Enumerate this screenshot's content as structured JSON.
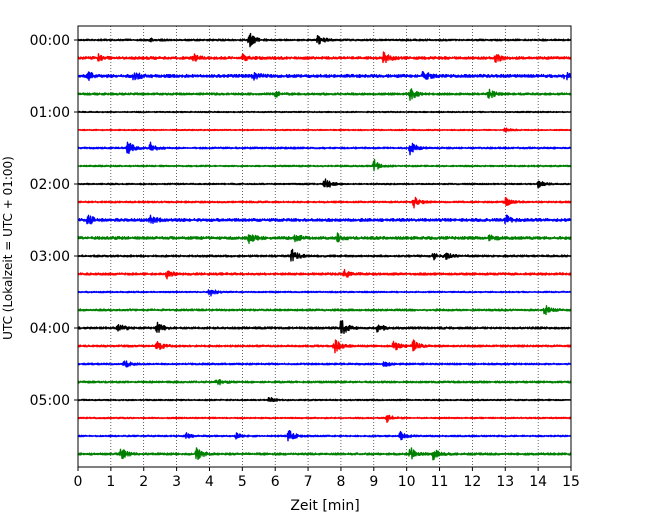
{
  "chart_data": {
    "type": "line",
    "title": "",
    "xlabel": "Zeit  [min]",
    "ylabel": "UTC (Lokalzeit = UTC + 01:00)",
    "xlim": [
      0,
      15
    ],
    "x_ticks": [
      "0",
      "1",
      "2",
      "3",
      "4",
      "5",
      "6",
      "7",
      "8",
      "9",
      "10",
      "11",
      "12",
      "13",
      "14",
      "15"
    ],
    "y_tick_labels": [
      "00:00",
      "01:00",
      "02:00",
      "03:00",
      "04:00",
      "05:00"
    ],
    "grid": "vertical dotted at each minute",
    "legend": "none",
    "trace_colors": [
      "#000000",
      "#ff0000",
      "#0000ff",
      "#008000"
    ],
    "trace_count": 24,
    "trace_minutes_each": 15,
    "traces": [
      {
        "start": "00:00",
        "color": "#000000",
        "events": [
          [
            5.2,
            0.8
          ],
          [
            7.3,
            0.5
          ],
          [
            2.2,
            0.2
          ]
        ],
        "noise": 0.18
      },
      {
        "start": "00:15",
        "color": "#ff0000",
        "events": [
          [
            0.6,
            0.4
          ],
          [
            3.5,
            0.4
          ],
          [
            5.0,
            0.3
          ],
          [
            9.3,
            0.6
          ],
          [
            12.7,
            0.5
          ]
        ],
        "noise": 0.28
      },
      {
        "start": "00:30",
        "color": "#0000ff",
        "events": [
          [
            0.3,
            0.5
          ],
          [
            1.7,
            0.5
          ],
          [
            5.3,
            0.4
          ],
          [
            10.5,
            0.5
          ],
          [
            14.8,
            0.4
          ]
        ],
        "noise": 0.32
      },
      {
        "start": "00:45",
        "color": "#008000",
        "events": [
          [
            10.1,
            0.7
          ],
          [
            12.5,
            0.5
          ],
          [
            6.0,
            0.3
          ]
        ],
        "noise": 0.22
      },
      {
        "start": "01:00",
        "color": "#000000",
        "events": [],
        "noise": 0.12
      },
      {
        "start": "01:15",
        "color": "#ff0000",
        "events": [
          [
            13.0,
            0.3
          ]
        ],
        "noise": 0.12
      },
      {
        "start": "01:30",
        "color": "#0000ff",
        "events": [
          [
            1.5,
            0.7
          ],
          [
            2.2,
            0.6
          ],
          [
            10.1,
            0.7
          ]
        ],
        "noise": 0.18
      },
      {
        "start": "01:45",
        "color": "#008000",
        "events": [
          [
            9.0,
            0.7
          ]
        ],
        "noise": 0.15
      },
      {
        "start": "02:00",
        "color": "#000000",
        "events": [
          [
            7.5,
            0.8
          ],
          [
            14.0,
            0.4
          ]
        ],
        "noise": 0.14
      },
      {
        "start": "02:15",
        "color": "#ff0000",
        "events": [
          [
            10.2,
            0.6
          ],
          [
            13.0,
            0.4
          ]
        ],
        "noise": 0.18
      },
      {
        "start": "02:30",
        "color": "#0000ff",
        "events": [
          [
            0.3,
            0.5
          ],
          [
            2.2,
            0.4
          ],
          [
            13.0,
            0.5
          ]
        ],
        "noise": 0.3
      },
      {
        "start": "02:45",
        "color": "#008000",
        "events": [
          [
            5.2,
            0.5
          ],
          [
            6.6,
            0.4
          ],
          [
            7.9,
            0.4
          ],
          [
            12.5,
            0.3
          ]
        ],
        "noise": 0.3
      },
      {
        "start": "03:00",
        "color": "#000000",
        "events": [
          [
            6.5,
            0.7
          ],
          [
            10.8,
            0.4
          ],
          [
            11.2,
            0.3
          ]
        ],
        "noise": 0.2
      },
      {
        "start": "03:15",
        "color": "#ff0000",
        "events": [
          [
            2.7,
            0.4
          ],
          [
            8.1,
            0.4
          ]
        ],
        "noise": 0.24
      },
      {
        "start": "03:30",
        "color": "#0000ff",
        "events": [
          [
            4.0,
            0.5
          ]
        ],
        "noise": 0.14
      },
      {
        "start": "03:45",
        "color": "#008000",
        "events": [
          [
            14.2,
            0.5
          ]
        ],
        "noise": 0.2
      },
      {
        "start": "04:00",
        "color": "#000000",
        "events": [
          [
            1.2,
            0.5
          ],
          [
            2.4,
            0.6
          ],
          [
            8.0,
            0.9
          ],
          [
            9.1,
            0.5
          ]
        ],
        "noise": 0.22
      },
      {
        "start": "04:15",
        "color": "#ff0000",
        "events": [
          [
            2.4,
            0.5
          ],
          [
            7.8,
            0.7
          ],
          [
            9.6,
            0.6
          ],
          [
            10.2,
            0.6
          ]
        ],
        "noise": 0.2
      },
      {
        "start": "04:30",
        "color": "#0000ff",
        "events": [
          [
            1.4,
            0.4
          ],
          [
            9.3,
            0.3
          ]
        ],
        "noise": 0.18
      },
      {
        "start": "04:45",
        "color": "#008000",
        "events": [
          [
            4.2,
            0.4
          ]
        ],
        "noise": 0.2
      },
      {
        "start": "05:00",
        "color": "#000000",
        "events": [
          [
            5.8,
            0.3
          ]
        ],
        "noise": 0.14
      },
      {
        "start": "05:15",
        "color": "#ff0000",
        "events": [
          [
            9.4,
            0.4
          ]
        ],
        "noise": 0.14
      },
      {
        "start": "05:30",
        "color": "#0000ff",
        "events": [
          [
            6.4,
            0.7
          ],
          [
            9.8,
            0.6
          ],
          [
            4.8,
            0.3
          ],
          [
            3.3,
            0.3
          ]
        ],
        "noise": 0.16
      },
      {
        "start": "05:45",
        "color": "#008000",
        "events": [
          [
            1.3,
            0.6
          ],
          [
            3.6,
            0.7
          ],
          [
            10.1,
            0.7
          ],
          [
            10.8,
            0.6
          ]
        ],
        "noise": 0.22
      }
    ]
  }
}
